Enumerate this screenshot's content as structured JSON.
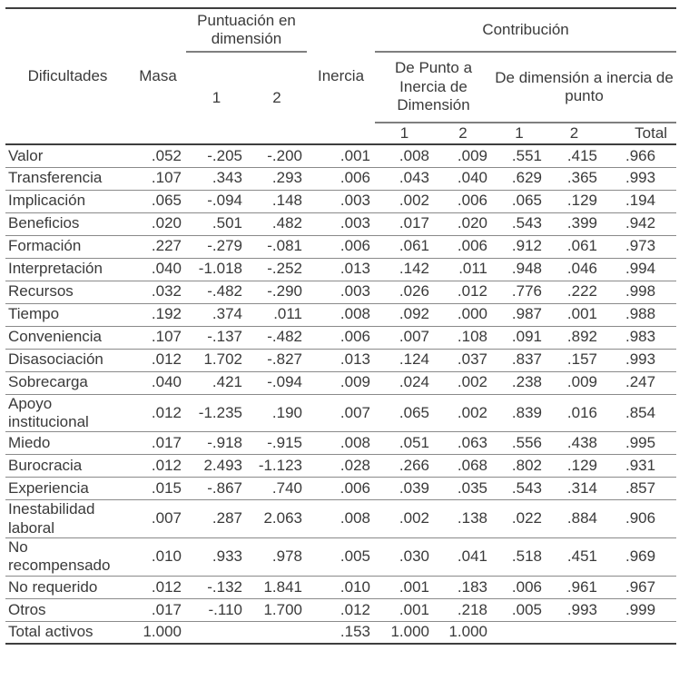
{
  "page": {
    "background": "#ffffff",
    "text_color": "#3a3a3a",
    "rule_dark": "#3e3e3e",
    "rule_gray": "#7f7f7f",
    "row_rule_gray": "#8a8a8a"
  },
  "table": {
    "header": {
      "col_dificultades": "Dificultades",
      "col_masa": "Masa",
      "group_puntuacion": "Puntuación en dimensión",
      "puntuacion_dim1": "1",
      "puntuacion_dim2": "2",
      "col_inercia": "Inercia",
      "group_contribucion": "Contribución",
      "group_de_punto": "De Punto a Inercia de Dimensión",
      "group_de_dimension": "De dimensión a inercia de punto",
      "contrib_punto_dim1": "1",
      "contrib_punto_dim2": "2",
      "contrib_dim_punto1": "1",
      "contrib_dim_punto2": "2",
      "col_total": "Total"
    },
    "rows": [
      {
        "label": "Valor",
        "values": [
          ".052",
          "-.205",
          "-.200",
          ".001",
          ".008",
          ".009",
          ".551",
          ".415",
          ".966"
        ]
      },
      {
        "label": "Transferencia",
        "values": [
          ".107",
          ".343",
          ".293",
          ".006",
          ".043",
          ".040",
          ".629",
          ".365",
          ".993"
        ]
      },
      {
        "label": "Implicación",
        "values": [
          ".065",
          "-.094",
          ".148",
          ".003",
          ".002",
          ".006",
          ".065",
          ".129",
          ".194"
        ]
      },
      {
        "label": "Beneficios",
        "values": [
          ".020",
          ".501",
          ".482",
          ".003",
          ".017",
          ".020",
          ".543",
          ".399",
          ".942"
        ]
      },
      {
        "label": "Formación",
        "values": [
          ".227",
          "-.279",
          "-.081",
          ".006",
          ".061",
          ".006",
          ".912",
          ".061",
          ".973"
        ]
      },
      {
        "label": "Interpretación",
        "values": [
          ".040",
          "-1.018",
          "-.252",
          ".013",
          ".142",
          ".011",
          ".948",
          ".046",
          ".994"
        ]
      },
      {
        "label": "Recursos",
        "values": [
          ".032",
          "-.482",
          "-.290",
          ".003",
          ".026",
          ".012",
          ".776",
          ".222",
          ".998"
        ]
      },
      {
        "label": "Tiempo",
        "values": [
          ".192",
          ".374",
          ".011",
          ".008",
          ".092",
          ".000",
          ".987",
          ".001",
          ".988"
        ]
      },
      {
        "label": "Conveniencia",
        "values": [
          ".107",
          "-.137",
          "-.482",
          ".006",
          ".007",
          ".108",
          ".091",
          ".892",
          ".983"
        ]
      },
      {
        "label": "Disasociación",
        "values": [
          ".012",
          "1.702",
          "-.827",
          ".013",
          ".124",
          ".037",
          ".837",
          ".157",
          ".993"
        ]
      },
      {
        "label": "Sobrecarga",
        "values": [
          ".040",
          ".421",
          "-.094",
          ".009",
          ".024",
          ".002",
          ".238",
          ".009",
          ".247"
        ]
      },
      {
        "label": "Apoyo institucional",
        "values": [
          ".012",
          "-1.235",
          ".190",
          ".007",
          ".065",
          ".002",
          ".839",
          ".016",
          ".854"
        ]
      },
      {
        "label": "Miedo",
        "values": [
          ".017",
          "-.918",
          "-.915",
          ".008",
          ".051",
          ".063",
          ".556",
          ".438",
          ".995"
        ]
      },
      {
        "label": "Burocracia",
        "values": [
          ".012",
          "2.493",
          "-1.123",
          ".028",
          ".266",
          ".068",
          ".802",
          ".129",
          ".931"
        ]
      },
      {
        "label": "Experiencia",
        "values": [
          ".015",
          "-.867",
          ".740",
          ".006",
          ".039",
          ".035",
          ".543",
          ".314",
          ".857"
        ]
      },
      {
        "label": "Inestabilidad laboral",
        "values": [
          ".007",
          ".287",
          "2.063",
          ".008",
          ".002",
          ".138",
          ".022",
          ".884",
          ".906"
        ]
      },
      {
        "label": "No recompensado",
        "values": [
          ".010",
          ".933",
          ".978",
          ".005",
          ".030",
          ".041",
          ".518",
          ".451",
          ".969"
        ]
      },
      {
        "label": "No requerido",
        "values": [
          ".012",
          "-.132",
          "1.841",
          ".010",
          ".001",
          ".183",
          ".006",
          ".961",
          ".967"
        ]
      },
      {
        "label": "Otros",
        "values": [
          ".017",
          "-.110",
          "1.700",
          ".012",
          ".001",
          ".218",
          ".005",
          ".993",
          ".999"
        ]
      },
      {
        "label": "Total activos",
        "values": [
          "1.000",
          "",
          "",
          ".153",
          "1.000",
          "1.000",
          "",
          "",
          ""
        ]
      }
    ],
    "column_semantics": [
      "masa",
      "score-dim1",
      "score-dim2",
      "inercia",
      "contrib-point-to-dim1",
      "contrib-point-to-dim2",
      "contrib-dim-to-point1",
      "contrib-dim-to-point2",
      "total"
    ]
  }
}
